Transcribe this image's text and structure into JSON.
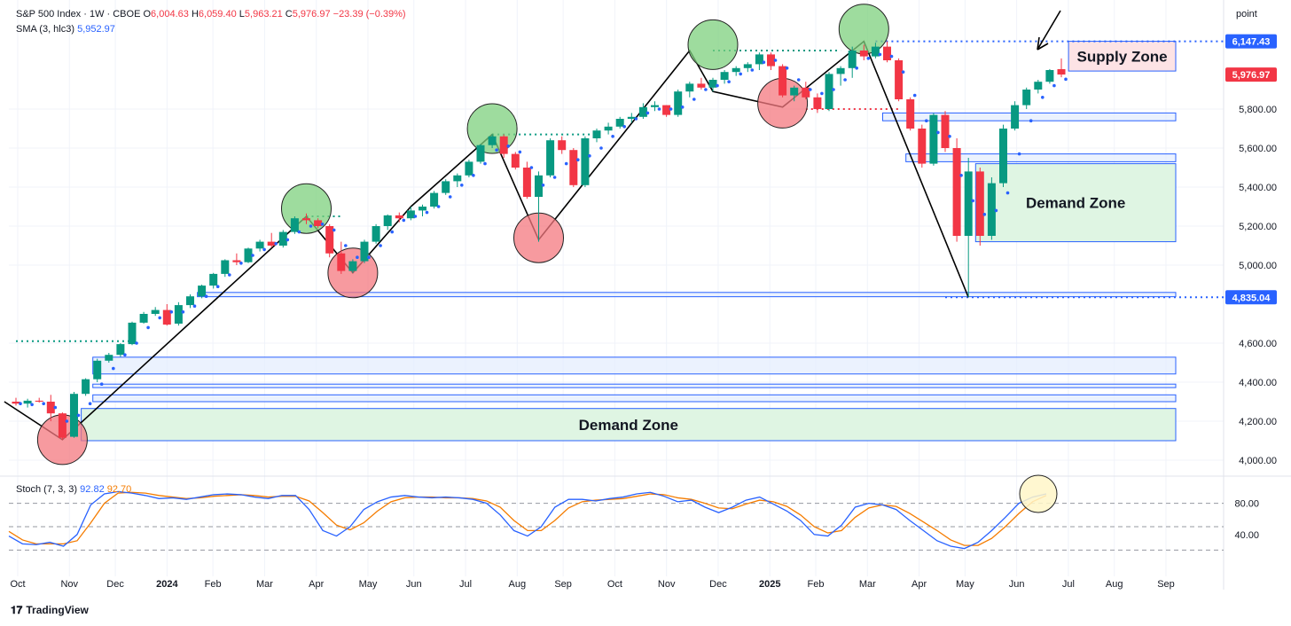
{
  "header": {
    "symbol": "S&P 500 Index · 1W · CBOE",
    "open_label": "O",
    "open": "6,004.63",
    "high_label": "H",
    "high": "6,059.40",
    "low_label": "L",
    "low": "5,963.21",
    "close_label": "C",
    "close": "5,976.97",
    "change": "−23.39 (−0.39%)",
    "sma_label": "SMA (3, hlc3)",
    "sma_value": "5,952.97"
  },
  "price_scale_unit": "point",
  "stoch": {
    "label": "Stoch (7, 3, 3)",
    "k": "92.82",
    "d": "92.70"
  },
  "branding": "TradingView",
  "colors": {
    "up": "#089981",
    "down": "#f23645",
    "k_line": "#2962ff",
    "d_line": "#f57c00"
  },
  "chart_data": {
    "type": "candlestick",
    "interval": "1W",
    "y_ticks": [
      "4,000.00",
      "4,200.00",
      "4,400.00",
      "4,600.00",
      "5,000.00",
      "5,200.00",
      "5,400.00",
      "5,600.00",
      "5,800.00"
    ],
    "price_labels": [
      {
        "text": "6,147.43",
        "value": 6147.43,
        "color": "#2962ff"
      },
      {
        "text": "5,976.97",
        "value": 5976.97,
        "color": "#f23645"
      },
      {
        "text": "4,835.04",
        "value": 4835.04,
        "color": "#2962ff"
      }
    ],
    "x_labels": [
      "Oct",
      "Nov",
      "Dec",
      "2024",
      "Feb",
      "Mar",
      "Apr",
      "May",
      "Jun",
      "Jul",
      "Aug",
      "Sep",
      "Oct",
      "Nov",
      "Dec",
      "2025",
      "Feb",
      "Mar",
      "Apr",
      "May",
      "Jun",
      "Jul",
      "Aug",
      "Sep"
    ],
    "x_label_positions": [
      0,
      4.5,
      8.5,
      13,
      17,
      21.5,
      26,
      30.5,
      34.5,
      39,
      43.5,
      47.5,
      52,
      56.5,
      61,
      65.5,
      69.5,
      74,
      78.5,
      82.5,
      87,
      91.5,
      95.5,
      100
    ],
    "candles": [
      [
        4300,
        4320,
        4280,
        4290
      ],
      [
        4290,
        4315,
        4270,
        4305
      ],
      [
        4305,
        4320,
        4295,
        4300
      ],
      [
        4300,
        4335,
        4200,
        4240
      ],
      [
        4240,
        4245,
        4105,
        4115
      ],
      [
        4120,
        4350,
        4115,
        4340
      ],
      [
        4340,
        4420,
        4330,
        4415
      ],
      [
        4415,
        4520,
        4400,
        4510
      ],
      [
        4510,
        4550,
        4500,
        4540
      ],
      [
        4540,
        4600,
        4530,
        4595
      ],
      [
        4595,
        4710,
        4590,
        4705
      ],
      [
        4705,
        4760,
        4700,
        4750
      ],
      [
        4750,
        4785,
        4740,
        4770
      ],
      [
        4770,
        4800,
        4690,
        4695
      ],
      [
        4700,
        4810,
        4690,
        4795
      ],
      [
        4795,
        4850,
        4780,
        4840
      ],
      [
        4840,
        4900,
        4830,
        4895
      ],
      [
        4895,
        4960,
        4880,
        4955
      ],
      [
        4955,
        5030,
        4940,
        5025
      ],
      [
        5025,
        5060,
        5000,
        5015
      ],
      [
        5015,
        5090,
        5010,
        5085
      ],
      [
        5085,
        5130,
        5070,
        5120
      ],
      [
        5120,
        5165,
        5090,
        5100
      ],
      [
        5100,
        5180,
        5090,
        5170
      ],
      [
        5170,
        5250,
        5160,
        5240
      ],
      [
        5240,
        5265,
        5210,
        5230
      ],
      [
        5230,
        5240,
        5190,
        5200
      ],
      [
        5200,
        5210,
        5040,
        5060
      ],
      [
        5060,
        5120,
        4955,
        4970
      ],
      [
        4970,
        5030,
        4960,
        5020
      ],
      [
        5020,
        5130,
        5010,
        5120
      ],
      [
        5120,
        5210,
        5110,
        5200
      ],
      [
        5200,
        5260,
        5180,
        5255
      ],
      [
        5255,
        5270,
        5220,
        5240
      ],
      [
        5240,
        5300,
        5230,
        5280
      ],
      [
        5280,
        5310,
        5250,
        5300
      ],
      [
        5300,
        5380,
        5290,
        5370
      ],
      [
        5370,
        5440,
        5360,
        5430
      ],
      [
        5430,
        5470,
        5400,
        5460
      ],
      [
        5460,
        5540,
        5450,
        5530
      ],
      [
        5530,
        5620,
        5520,
        5615
      ],
      [
        5615,
        5670,
        5600,
        5660
      ],
      [
        5660,
        5670,
        5550,
        5570
      ],
      [
        5570,
        5580,
        5490,
        5500
      ],
      [
        5500,
        5530,
        5340,
        5350
      ],
      [
        5350,
        5480,
        5120,
        5460
      ],
      [
        5460,
        5650,
        5450,
        5640
      ],
      [
        5640,
        5660,
        5570,
        5590
      ],
      [
        5590,
        5600,
        5400,
        5410
      ],
      [
        5410,
        5660,
        5400,
        5650
      ],
      [
        5650,
        5700,
        5630,
        5690
      ],
      [
        5690,
        5730,
        5670,
        5710
      ],
      [
        5710,
        5760,
        5700,
        5750
      ],
      [
        5750,
        5780,
        5730,
        5760
      ],
      [
        5760,
        5830,
        5750,
        5810
      ],
      [
        5810,
        5840,
        5790,
        5820
      ],
      [
        5820,
        5820,
        5760,
        5770
      ],
      [
        5770,
        5900,
        5760,
        5890
      ],
      [
        5890,
        5940,
        5860,
        5930
      ],
      [
        5930,
        5960,
        5900,
        5910
      ],
      [
        5910,
        5960,
        5890,
        5950
      ],
      [
        5950,
        6000,
        5930,
        5990
      ],
      [
        5990,
        6020,
        5970,
        6010
      ],
      [
        6010,
        6040,
        5990,
        6030
      ],
      [
        6030,
        6090,
        6000,
        6080
      ],
      [
        6080,
        6090,
        6000,
        6020
      ],
      [
        6020,
        6030,
        5860,
        5870
      ],
      [
        5870,
        5920,
        5840,
        5910
      ],
      [
        5910,
        5940,
        5850,
        5860
      ],
      [
        5860,
        5880,
        5780,
        5800
      ],
      [
        5800,
        5990,
        5790,
        5980
      ],
      [
        5980,
        6020,
        5920,
        6010
      ],
      [
        6010,
        6120,
        5960,
        6100
      ],
      [
        6100,
        6130,
        6050,
        6070
      ],
      [
        6070,
        6140,
        6060,
        6120
      ],
      [
        6120,
        6147,
        6040,
        6050
      ],
      [
        6050,
        6060,
        5840,
        5850
      ],
      [
        5850,
        5860,
        5690,
        5700
      ],
      [
        5700,
        5720,
        5500,
        5520
      ],
      [
        5520,
        5780,
        5510,
        5770
      ],
      [
        5770,
        5790,
        5580,
        5600
      ],
      [
        5600,
        5650,
        5120,
        5150
      ],
      [
        5150,
        5550,
        4835,
        5480
      ],
      [
        5480,
        5500,
        5100,
        5150
      ],
      [
        5150,
        5450,
        5130,
        5420
      ],
      [
        5420,
        5720,
        5400,
        5700
      ],
      [
        5700,
        5840,
        5690,
        5820
      ],
      [
        5820,
        5910,
        5800,
        5900
      ],
      [
        5900,
        5950,
        5880,
        5940
      ],
      [
        5940,
        6005,
        5930,
        6000
      ],
      [
        6004.63,
        6059.4,
        5963.21,
        5976.97
      ]
    ],
    "sma": [
      4290,
      4285,
      4290,
      4270,
      4200,
      4230,
      4290,
      4390,
      4470,
      4540,
      4600,
      4680,
      4730,
      4760,
      4760,
      4790,
      4840,
      4890,
      4950,
      5010,
      5050,
      5080,
      5110,
      5130,
      5170,
      5200,
      5210,
      5180,
      5100,
      5040,
      5040,
      5100,
      5170,
      5230,
      5250,
      5270,
      5300,
      5350,
      5410,
      5460,
      5520,
      5590,
      5610,
      5580,
      5500,
      5410,
      5450,
      5520,
      5540,
      5560,
      5600,
      5660,
      5710,
      5750,
      5780,
      5800,
      5800,
      5810,
      5850,
      5900,
      5920,
      5940,
      5980,
      6000,
      6040,
      6050,
      6010,
      5950,
      5900,
      5880,
      5900,
      5950,
      6010,
      6060,
      6080,
      6070,
      5990,
      5870,
      5740,
      5680,
      5660,
      5460,
      5330,
      5260,
      5280,
      5370,
      5570,
      5740,
      5860,
      5920,
      5952.97
    ],
    "zones": [
      {
        "label": "Supply Zone",
        "from": 5995,
        "to": 6147.43,
        "x_start": 91,
        "x_end": 120,
        "fill": "#fde3e5",
        "stroke": "#2962ff"
      },
      {
        "label": "Demand Zone",
        "from": 5120,
        "to": 5520,
        "x_start": 83,
        "x_end": 120,
        "fill": "#dff5e3",
        "stroke": "#2962ff"
      },
      {
        "label": "Demand Zone",
        "from": 4100,
        "to": 4265,
        "x_start": 6,
        "x_end": 120,
        "fill": "#dff5e3",
        "stroke": "#2962ff"
      }
    ],
    "stoch_k": [
      38,
      28,
      27,
      30,
      25,
      40,
      78,
      92,
      95,
      93,
      90,
      86,
      87,
      85,
      88,
      91,
      92,
      91,
      88,
      86,
      90,
      90,
      72,
      45,
      38,
      50,
      72,
      82,
      88,
      90,
      88,
      87,
      88,
      87,
      85,
      80,
      65,
      45,
      38,
      50,
      75,
      85,
      85,
      83,
      86,
      88,
      92,
      94,
      89,
      82,
      84,
      75,
      68,
      75,
      84,
      88,
      79,
      70,
      58,
      40,
      38,
      52,
      75,
      80,
      78,
      72,
      58,
      45,
      32,
      25,
      22,
      30,
      45,
      62,
      80,
      88,
      92
    ],
    "stoch_d": [
      44,
      33,
      28,
      28,
      28,
      32,
      55,
      80,
      93,
      94,
      93,
      90,
      88,
      86,
      87,
      89,
      90,
      91,
      90,
      88,
      89,
      89,
      83,
      68,
      52,
      46,
      55,
      70,
      82,
      87,
      88,
      88,
      87,
      87,
      86,
      83,
      75,
      58,
      45,
      45,
      58,
      74,
      82,
      84,
      85,
      86,
      89,
      92,
      91,
      87,
      85,
      80,
      74,
      73,
      79,
      84,
      82,
      76,
      65,
      50,
      42,
      45,
      62,
      74,
      78,
      76,
      67,
      56,
      45,
      33,
      26,
      26,
      35,
      50,
      67,
      82,
      90
    ],
    "stoch_ticks": [
      "80.00",
      "40.00"
    ]
  }
}
